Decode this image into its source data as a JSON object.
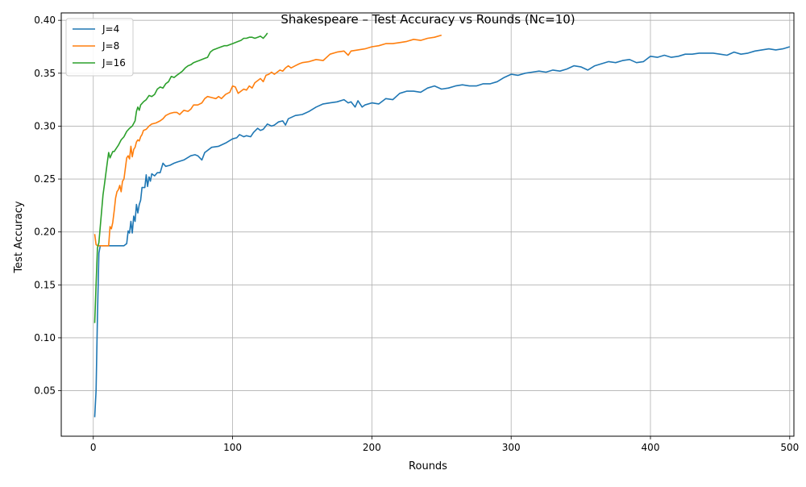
{
  "chart_data": {
    "type": "line",
    "title": "Shakespeare – Test Accuracy vs Rounds (Nc=10)",
    "xlabel": "Rounds",
    "ylabel": "Test Accuracy",
    "xlim": [
      -23,
      503
    ],
    "ylim": [
      0.007,
      0.407
    ],
    "xticks": [
      0,
      100,
      200,
      300,
      400,
      500
    ],
    "xtick_labels": [
      "0",
      "100",
      "200",
      "300",
      "400",
      "500"
    ],
    "yticks": [
      0.05,
      0.1,
      0.15,
      0.2,
      0.25,
      0.3,
      0.35,
      0.4
    ],
    "ytick_labels": [
      "0.05",
      "0.10",
      "0.15",
      "0.20",
      "0.25",
      "0.30",
      "0.35",
      "0.40"
    ],
    "grid": true,
    "legend_position": "top-left",
    "series": [
      {
        "name": "J=4",
        "color": "#1f77b4",
        "x": [
          1,
          2,
          3,
          4,
          5,
          6,
          8,
          10,
          12,
          14,
          16,
          18,
          20,
          22,
          24,
          25,
          26,
          27,
          28,
          29,
          30,
          31,
          32,
          33,
          34,
          35,
          36,
          37,
          38,
          39,
          40,
          41,
          42,
          44,
          46,
          48,
          50,
          52,
          55,
          58,
          60,
          65,
          70,
          73,
          75,
          78,
          80,
          85,
          90,
          95,
          100,
          103,
          105,
          108,
          110,
          113,
          115,
          118,
          120,
          122,
          125,
          128,
          130,
          133,
          136,
          138,
          140,
          145,
          150,
          155,
          160,
          165,
          170,
          175,
          180,
          183,
          185,
          188,
          190,
          193,
          195,
          200,
          205,
          210,
          215,
          220,
          225,
          230,
          235,
          240,
          245,
          250,
          255,
          260,
          265,
          270,
          275,
          280,
          285,
          290,
          295,
          300,
          305,
          310,
          315,
          320,
          325,
          330,
          335,
          340,
          345,
          350,
          355,
          360,
          365,
          370,
          375,
          380,
          385,
          390,
          395,
          400,
          405,
          410,
          415,
          420,
          425,
          430,
          435,
          440,
          445,
          450,
          455,
          460,
          465,
          470,
          475,
          480,
          485,
          490,
          495,
          500
        ],
        "y": [
          0.025,
          0.05,
          0.12,
          0.18,
          0.187,
          0.187,
          0.187,
          0.187,
          0.187,
          0.187,
          0.187,
          0.187,
          0.187,
          0.187,
          0.189,
          0.201,
          0.199,
          0.21,
          0.199,
          0.215,
          0.21,
          0.226,
          0.218,
          0.226,
          0.23,
          0.242,
          0.242,
          0.242,
          0.254,
          0.243,
          0.252,
          0.248,
          0.255,
          0.253,
          0.256,
          0.256,
          0.265,
          0.262,
          0.263,
          0.265,
          0.266,
          0.268,
          0.272,
          0.273,
          0.272,
          0.268,
          0.275,
          0.28,
          0.281,
          0.284,
          0.288,
          0.289,
          0.292,
          0.29,
          0.291,
          0.29,
          0.294,
          0.298,
          0.296,
          0.297,
          0.302,
          0.3,
          0.301,
          0.304,
          0.305,
          0.301,
          0.307,
          0.31,
          0.311,
          0.314,
          0.318,
          0.321,
          0.322,
          0.323,
          0.325,
          0.322,
          0.323,
          0.318,
          0.324,
          0.318,
          0.32,
          0.322,
          0.321,
          0.326,
          0.325,
          0.331,
          0.333,
          0.333,
          0.332,
          0.336,
          0.338,
          0.335,
          0.336,
          0.338,
          0.339,
          0.338,
          0.338,
          0.34,
          0.34,
          0.342,
          0.346,
          0.349,
          0.348,
          0.35,
          0.351,
          0.352,
          0.351,
          0.353,
          0.352,
          0.354,
          0.357,
          0.356,
          0.353,
          0.357,
          0.359,
          0.361,
          0.36,
          0.362,
          0.363,
          0.36,
          0.361,
          0.366,
          0.365,
          0.367,
          0.365,
          0.366,
          0.368,
          0.368,
          0.369,
          0.369,
          0.369,
          0.368,
          0.367,
          0.37,
          0.368,
          0.369,
          0.371,
          0.372,
          0.373,
          0.372,
          0.373,
          0.375
        ]
      },
      {
        "name": "J=8",
        "color": "#ff7f0e",
        "x": [
          1,
          2,
          3,
          4,
          6,
          8,
          10,
          11,
          12,
          13,
          14,
          15,
          16,
          17,
          18,
          19,
          20,
          21,
          22,
          23,
          24,
          25,
          26,
          27,
          28,
          29,
          30,
          31,
          32,
          33,
          34,
          35,
          36,
          38,
          40,
          42,
          45,
          48,
          50,
          52,
          55,
          58,
          60,
          62,
          65,
          68,
          70,
          72,
          75,
          78,
          80,
          82,
          85,
          88,
          90,
          92,
          95,
          98,
          100,
          102,
          104,
          106,
          108,
          110,
          112,
          114,
          116,
          118,
          120,
          122,
          124,
          126,
          128,
          130,
          132,
          134,
          136,
          138,
          140,
          142,
          145,
          148,
          150,
          155,
          160,
          165,
          170,
          175,
          180,
          183,
          185,
          190,
          195,
          200,
          205,
          210,
          215,
          220,
          225,
          230,
          235,
          240,
          245,
          250
        ],
        "y": [
          0.198,
          0.188,
          0.187,
          0.187,
          0.187,
          0.187,
          0.187,
          0.187,
          0.205,
          0.203,
          0.209,
          0.22,
          0.232,
          0.238,
          0.24,
          0.244,
          0.238,
          0.248,
          0.25,
          0.26,
          0.27,
          0.272,
          0.269,
          0.281,
          0.271,
          0.278,
          0.28,
          0.285,
          0.287,
          0.286,
          0.29,
          0.292,
          0.296,
          0.297,
          0.3,
          0.302,
          0.303,
          0.305,
          0.307,
          0.31,
          0.312,
          0.313,
          0.313,
          0.311,
          0.315,
          0.314,
          0.316,
          0.32,
          0.32,
          0.322,
          0.326,
          0.328,
          0.327,
          0.326,
          0.328,
          0.326,
          0.33,
          0.332,
          0.338,
          0.337,
          0.331,
          0.333,
          0.335,
          0.334,
          0.338,
          0.336,
          0.341,
          0.343,
          0.345,
          0.342,
          0.348,
          0.349,
          0.351,
          0.349,
          0.351,
          0.353,
          0.352,
          0.355,
          0.357,
          0.355,
          0.357,
          0.359,
          0.36,
          0.361,
          0.363,
          0.362,
          0.368,
          0.37,
          0.371,
          0.367,
          0.371,
          0.372,
          0.373,
          0.375,
          0.376,
          0.378,
          0.378,
          0.379,
          0.38,
          0.382,
          0.381,
          0.383,
          0.384,
          0.386
        ]
      },
      {
        "name": "J=16",
        "color": "#2ca02c",
        "x": [
          1,
          2,
          3,
          4,
          5,
          6,
          7,
          8,
          9,
          10,
          11,
          12,
          13,
          14,
          15,
          16,
          18,
          20,
          22,
          24,
          26,
          28,
          30,
          31,
          32,
          33,
          34,
          36,
          38,
          40,
          42,
          44,
          46,
          48,
          50,
          52,
          54,
          56,
          58,
          60,
          62,
          64,
          66,
          68,
          70,
          72,
          74,
          76,
          78,
          80,
          82,
          84,
          86,
          88,
          90,
          92,
          94,
          96,
          98,
          100,
          102,
          104,
          106,
          108,
          110,
          112,
          114,
          116,
          118,
          120,
          122,
          124,
          125
        ],
        "y": [
          0.114,
          0.15,
          0.185,
          0.19,
          0.205,
          0.22,
          0.235,
          0.245,
          0.255,
          0.265,
          0.275,
          0.27,
          0.273,
          0.276,
          0.276,
          0.278,
          0.282,
          0.287,
          0.29,
          0.295,
          0.298,
          0.3,
          0.305,
          0.314,
          0.318,
          0.315,
          0.32,
          0.323,
          0.325,
          0.329,
          0.328,
          0.33,
          0.335,
          0.337,
          0.336,
          0.34,
          0.342,
          0.347,
          0.346,
          0.348,
          0.35,
          0.352,
          0.355,
          0.357,
          0.358,
          0.36,
          0.361,
          0.362,
          0.363,
          0.364,
          0.365,
          0.37,
          0.372,
          0.373,
          0.374,
          0.375,
          0.376,
          0.376,
          0.377,
          0.378,
          0.379,
          0.38,
          0.381,
          0.383,
          0.383,
          0.384,
          0.384,
          0.383,
          0.384,
          0.385,
          0.383,
          0.386,
          0.388
        ]
      }
    ]
  }
}
